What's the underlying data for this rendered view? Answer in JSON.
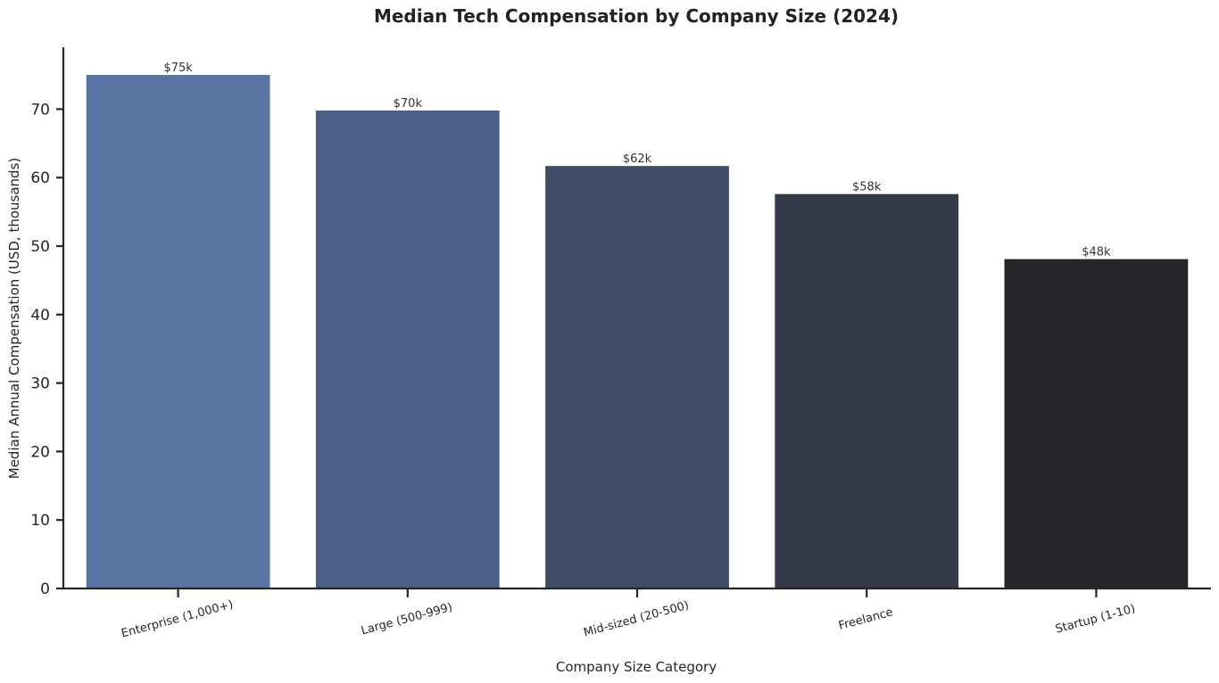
{
  "chart_data": {
    "type": "bar",
    "title": "Median Tech Compensation by Company Size (2024)",
    "xlabel": "Company Size Category",
    "ylabel": "Median Annual Compensation (USD, thousands)",
    "categories": [
      "Enterprise (1,000+)",
      "Large (500-999)",
      "Mid-sized (20-500)",
      "Freelance",
      "Startup (1-10)"
    ],
    "values": [
      75,
      69.8,
      61.7,
      57.6,
      48.1
    ],
    "data_labels": [
      "$75k",
      "$70k",
      "$62k",
      "$58k",
      "$48k"
    ],
    "colors": [
      "#5875a4",
      "#4b5f86",
      "#3f4c66",
      "#333947",
      "#252629"
    ],
    "ylim": [
      0,
      78.5
    ],
    "yticks": [
      0,
      10,
      20,
      30,
      40,
      50,
      60,
      70
    ],
    "grid": false,
    "legend": "none"
  }
}
